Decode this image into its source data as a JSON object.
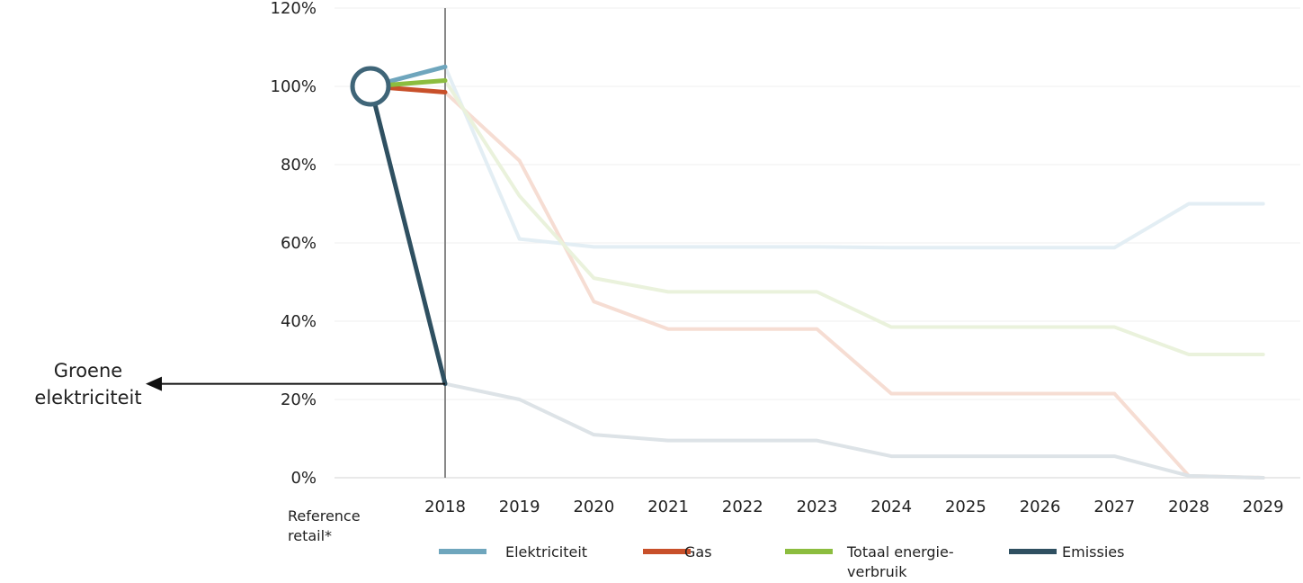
{
  "chart_data": {
    "type": "line",
    "reference_label_lines": [
      "Reference",
      "retail*"
    ],
    "categories": [
      "Reference retail*",
      "2018",
      "2019",
      "2020",
      "2021",
      "2022",
      "2023",
      "2024",
      "2025",
      "2026",
      "2027",
      "2028",
      "2029"
    ],
    "ylim": [
      0,
      120
    ],
    "yticks": [
      "0%",
      "20%",
      "40%",
      "60%",
      "80%",
      "100%",
      "120%"
    ],
    "grid": true,
    "legend_position": "bottom",
    "series": [
      {
        "name": "Elektriciteit",
        "color": "#6fa6bd",
        "faded_color": "#e3eef4",
        "values": [
          100,
          105,
          61,
          59,
          59,
          59,
          59,
          58.8,
          58.8,
          58.8,
          58.8,
          70,
          70
        ]
      },
      {
        "name": "Gas",
        "color": "#c8502a",
        "faded_color": "#f6ddd3",
        "values": [
          100,
          98.5,
          81,
          45,
          38,
          38,
          38,
          21.5,
          21.5,
          21.5,
          21.5,
          0.5,
          0
        ]
      },
      {
        "name": "Totaal energieverbruik",
        "legend_lines": [
          "Totaal energie-",
          "verbruik"
        ],
        "color": "#8cbd3f",
        "faded_color": "#eaf2dc",
        "values": [
          100,
          101.5,
          72,
          51,
          47.5,
          47.5,
          47.5,
          38.5,
          38.5,
          38.5,
          38.5,
          31.5,
          31.5
        ]
      },
      {
        "name": "Emissies",
        "color": "#2f5061",
        "faded_color": "#dde3e7",
        "values": [
          100,
          24,
          20,
          11,
          9.5,
          9.5,
          9.5,
          5.5,
          5.5,
          5.5,
          5.5,
          0.5,
          0
        ]
      }
    ],
    "annotation": {
      "lines": [
        "Groene",
        "elektriciteit"
      ],
      "at_value": 24
    }
  }
}
